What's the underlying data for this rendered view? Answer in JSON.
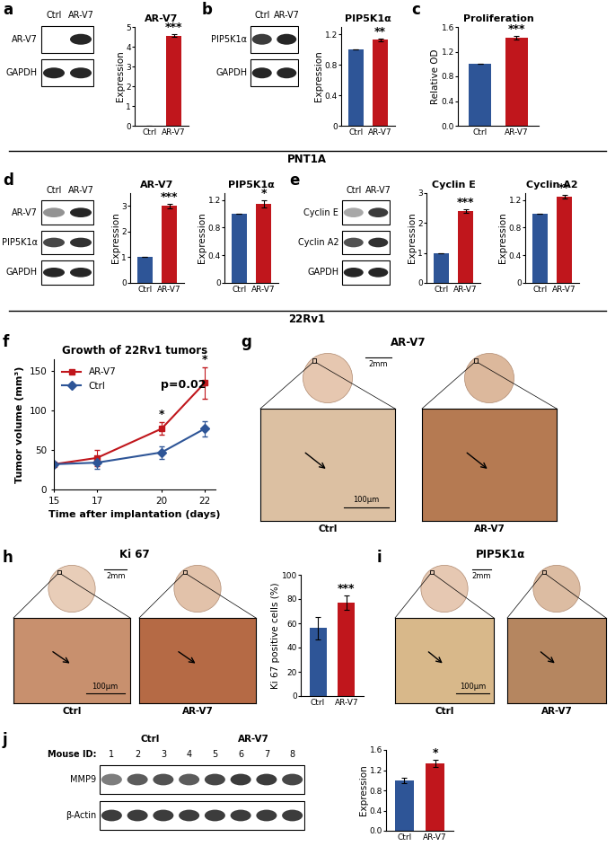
{
  "panel_letters": [
    "a",
    "b",
    "c",
    "d",
    "e",
    "f",
    "g",
    "h",
    "i",
    "j"
  ],
  "sections": [
    {
      "label": "PNT1A"
    },
    {
      "label": "22Rv1"
    }
  ],
  "blots": [
    {
      "lanes": [
        "Ctrl",
        "AR-V7"
      ],
      "rows": [
        {
          "name": "AR-V7",
          "intensity": [
            0,
            1
          ]
        },
        {
          "name": "GAPDH",
          "intensity": [
            1,
            1
          ]
        }
      ]
    },
    {
      "lanes": [
        "Ctrl",
        "AR-V7"
      ],
      "rows": [
        {
          "name": "PIP5K1α",
          "intensity": [
            0.9,
            1
          ]
        },
        {
          "name": "GAPDH",
          "intensity": [
            1,
            1
          ]
        }
      ]
    },
    {
      "lanes": [
        "Ctrl",
        "AR-V7"
      ],
      "rows": [
        {
          "name": "AR-V7",
          "intensity": [
            0.5,
            1
          ]
        },
        {
          "name": "PIP5K1α",
          "intensity": [
            0.85,
            0.95
          ]
        },
        {
          "name": "GAPDH",
          "intensity": [
            1,
            1
          ]
        }
      ]
    },
    {
      "lanes": [
        "Ctrl",
        "AR-V7"
      ],
      "rows": [
        {
          "name": "Cyclin E",
          "intensity": [
            0.4,
            0.9
          ]
        },
        {
          "name": "Cyclin A2",
          "intensity": [
            0.8,
            0.95
          ]
        },
        {
          "name": "GAPDH",
          "intensity": [
            1,
            1
          ]
        }
      ]
    },
    {
      "lane_title": "Mouse ID:",
      "lanes": [
        "1",
        "2",
        "3",
        "4",
        "5",
        "6",
        "7",
        "8"
      ],
      "groups": [
        {
          "name": "Ctrl",
          "span": 4
        },
        {
          "name": "AR-V7",
          "span": 4
        }
      ],
      "rows": [
        {
          "name": "MMP9",
          "intensity": [
            0.6,
            0.75,
            0.8,
            0.75,
            0.85,
            0.9,
            0.9,
            0.85
          ]
        },
        {
          "name": "β-Actin",
          "intensity": [
            0.9,
            0.9,
            0.9,
            0.9,
            0.9,
            0.9,
            0.9,
            0.9
          ]
        }
      ]
    }
  ],
  "images": [
    {
      "title": "AR-V7",
      "groups": [
        "Ctrl",
        "AR-V7"
      ],
      "scale_overview": "2mm",
      "scale_zoom": "100µm"
    },
    {
      "title": "Ki 67",
      "groups": [
        "Ctrl",
        "AR-V7"
      ],
      "scale_overview": "2mm",
      "scale_zoom": "100µm"
    },
    {
      "title": "PIP5K1α",
      "groups": [
        "Ctrl",
        "AR-V7"
      ],
      "scale_overview": "2mm",
      "scale_zoom": "100µm"
    }
  ],
  "chart_data": [
    {
      "type": "bar",
      "title": "AR-V7",
      "ylabel": "Expression",
      "categories": [
        "Ctrl",
        "AR-V7"
      ],
      "values": [
        0,
        4.55
      ],
      "errors": [
        0,
        0.07
      ],
      "colors": [
        "#2e5597",
        "#c0161c"
      ],
      "ylim": [
        0,
        5
      ],
      "yticks": [
        0,
        1,
        2,
        3,
        4,
        5
      ],
      "annotations": [
        {
          "text": "***",
          "category": "AR-V7"
        }
      ]
    },
    {
      "type": "bar",
      "title": "PIP5K1α",
      "ylabel": "Expression",
      "categories": [
        "Ctrl",
        "AR-V7"
      ],
      "values": [
        1,
        1.13
      ],
      "errors": [
        0,
        0.02
      ],
      "colors": [
        "#2e5597",
        "#c0161c"
      ],
      "ylim": [
        0,
        1.3
      ],
      "yticks": [
        0,
        0.4,
        0.8,
        1.2
      ],
      "annotations": [
        {
          "text": "**",
          "category": "AR-V7"
        }
      ]
    },
    {
      "type": "bar",
      "title": "Proliferation",
      "ylabel": "Relative OD",
      "categories": [
        "Ctrl",
        "AR-V7"
      ],
      "values": [
        1,
        1.42
      ],
      "errors": [
        0,
        0.03
      ],
      "colors": [
        "#2e5597",
        "#c0161c"
      ],
      "ylim": [
        0,
        1.6
      ],
      "yticks": [
        {
          "value": 0,
          "label": "0.0"
        },
        0.4,
        0.8,
        1.2,
        1.6
      ],
      "annotations": [
        {
          "text": "***",
          "category": "AR-V7"
        }
      ]
    },
    {
      "type": "bar",
      "title": "AR-V7",
      "ylabel": "Expression",
      "categories": [
        "Ctrl",
        "AR-V7"
      ],
      "values": [
        1,
        3.0
      ],
      "errors": [
        0,
        0.08
      ],
      "colors": [
        "#2e5597",
        "#c0161c"
      ],
      "ylim": [
        0,
        3.5
      ],
      "yticks": [
        0,
        1,
        2,
        3
      ],
      "annotations": [
        {
          "text": "***",
          "category": "AR-V7"
        }
      ]
    },
    {
      "type": "bar",
      "title": "PIP5K1α",
      "ylabel": "Expression",
      "categories": [
        "Ctrl",
        "AR-V7"
      ],
      "values": [
        1,
        1.14
      ],
      "errors": [
        0,
        0.05
      ],
      "colors": [
        "#2e5597",
        "#c0161c"
      ],
      "ylim": [
        0,
        1.3
      ],
      "yticks": [
        0,
        0.4,
        0.8,
        1.2
      ],
      "annotations": [
        {
          "text": "*",
          "category": "AR-V7"
        }
      ]
    },
    {
      "type": "bar",
      "title": "Cyclin E",
      "ylabel": "Expression",
      "categories": [
        "Ctrl",
        "AR-V7"
      ],
      "values": [
        1,
        2.4
      ],
      "errors": [
        0,
        0.05
      ],
      "colors": [
        "#2e5597",
        "#c0161c"
      ],
      "ylim": [
        0,
        3
      ],
      "yticks": [
        0,
        1,
        2,
        3
      ],
      "annotations": [
        {
          "text": "***",
          "category": "AR-V7"
        }
      ]
    },
    {
      "type": "bar",
      "title": "Cyclin A2",
      "ylabel": "Expression",
      "categories": [
        "Ctrl",
        "AR-V7"
      ],
      "values": [
        1,
        1.25
      ],
      "errors": [
        0,
        0.03
      ],
      "colors": [
        "#2e5597",
        "#c0161c"
      ],
      "ylim": [
        0,
        1.3
      ],
      "yticks": [
        0,
        0.4,
        0.8,
        1.2
      ],
      "annotations": [
        {
          "text": "**",
          "category": "AR-V7"
        }
      ]
    },
    {
      "type": "line",
      "title": "Growth of 22Rv1 tumors",
      "xlabel": "Time after implantation (days)",
      "ylabel": "Tumor volume (mm³)",
      "x": [
        15,
        17,
        20,
        22
      ],
      "series": [
        {
          "name": "AR-V7",
          "color": "#c0161c",
          "marker": "square",
          "values": [
            32,
            40,
            77,
            135
          ],
          "errors": [
            2,
            10,
            8,
            20
          ]
        },
        {
          "name": "Ctrl",
          "color": "#2e5597",
          "marker": "diamond",
          "values": [
            32,
            34,
            47,
            77
          ],
          "errors": [
            2,
            8,
            8,
            10
          ]
        }
      ],
      "xlim": [
        15,
        22.5
      ],
      "xticks": [
        15,
        17,
        20,
        22
      ],
      "ylim": [
        0,
        165
      ],
      "yticks": [
        0,
        50,
        100,
        150
      ],
      "legend": "upper left",
      "annotations": [
        {
          "text": "*",
          "x": 20,
          "y": 88
        },
        {
          "text": "*",
          "x": 22,
          "y": 157
        },
        {
          "text": "p=0.02",
          "x": 21,
          "y": 125
        }
      ]
    },
    {
      "type": "bar",
      "title": "",
      "ylabel": "Ki 67 positive cells (%)",
      "categories": [
        "Ctrl",
        "AR-V7"
      ],
      "values": [
        56,
        77
      ],
      "errors": [
        9,
        6
      ],
      "colors": [
        "#2e5597",
        "#c0161c"
      ],
      "ylim": [
        0,
        100
      ],
      "yticks": [
        0,
        20,
        40,
        60,
        80,
        100
      ],
      "annotations": [
        {
          "text": "***",
          "category": "AR-V7"
        }
      ]
    },
    {
      "type": "bar",
      "title": "",
      "ylabel": "Expression",
      "categories": [
        "Ctrl",
        "AR-V7"
      ],
      "values": [
        1.0,
        1.33
      ],
      "errors": [
        0.05,
        0.07
      ],
      "colors": [
        "#2e5597",
        "#c0161c"
      ],
      "ylim": [
        0,
        1.6
      ],
      "yticks": [
        {
          "value": 0,
          "label": "0.0"
        },
        0.4,
        0.8,
        1.2,
        1.6
      ],
      "annotations": [
        {
          "text": "*",
          "category": "AR-V7"
        }
      ]
    }
  ]
}
